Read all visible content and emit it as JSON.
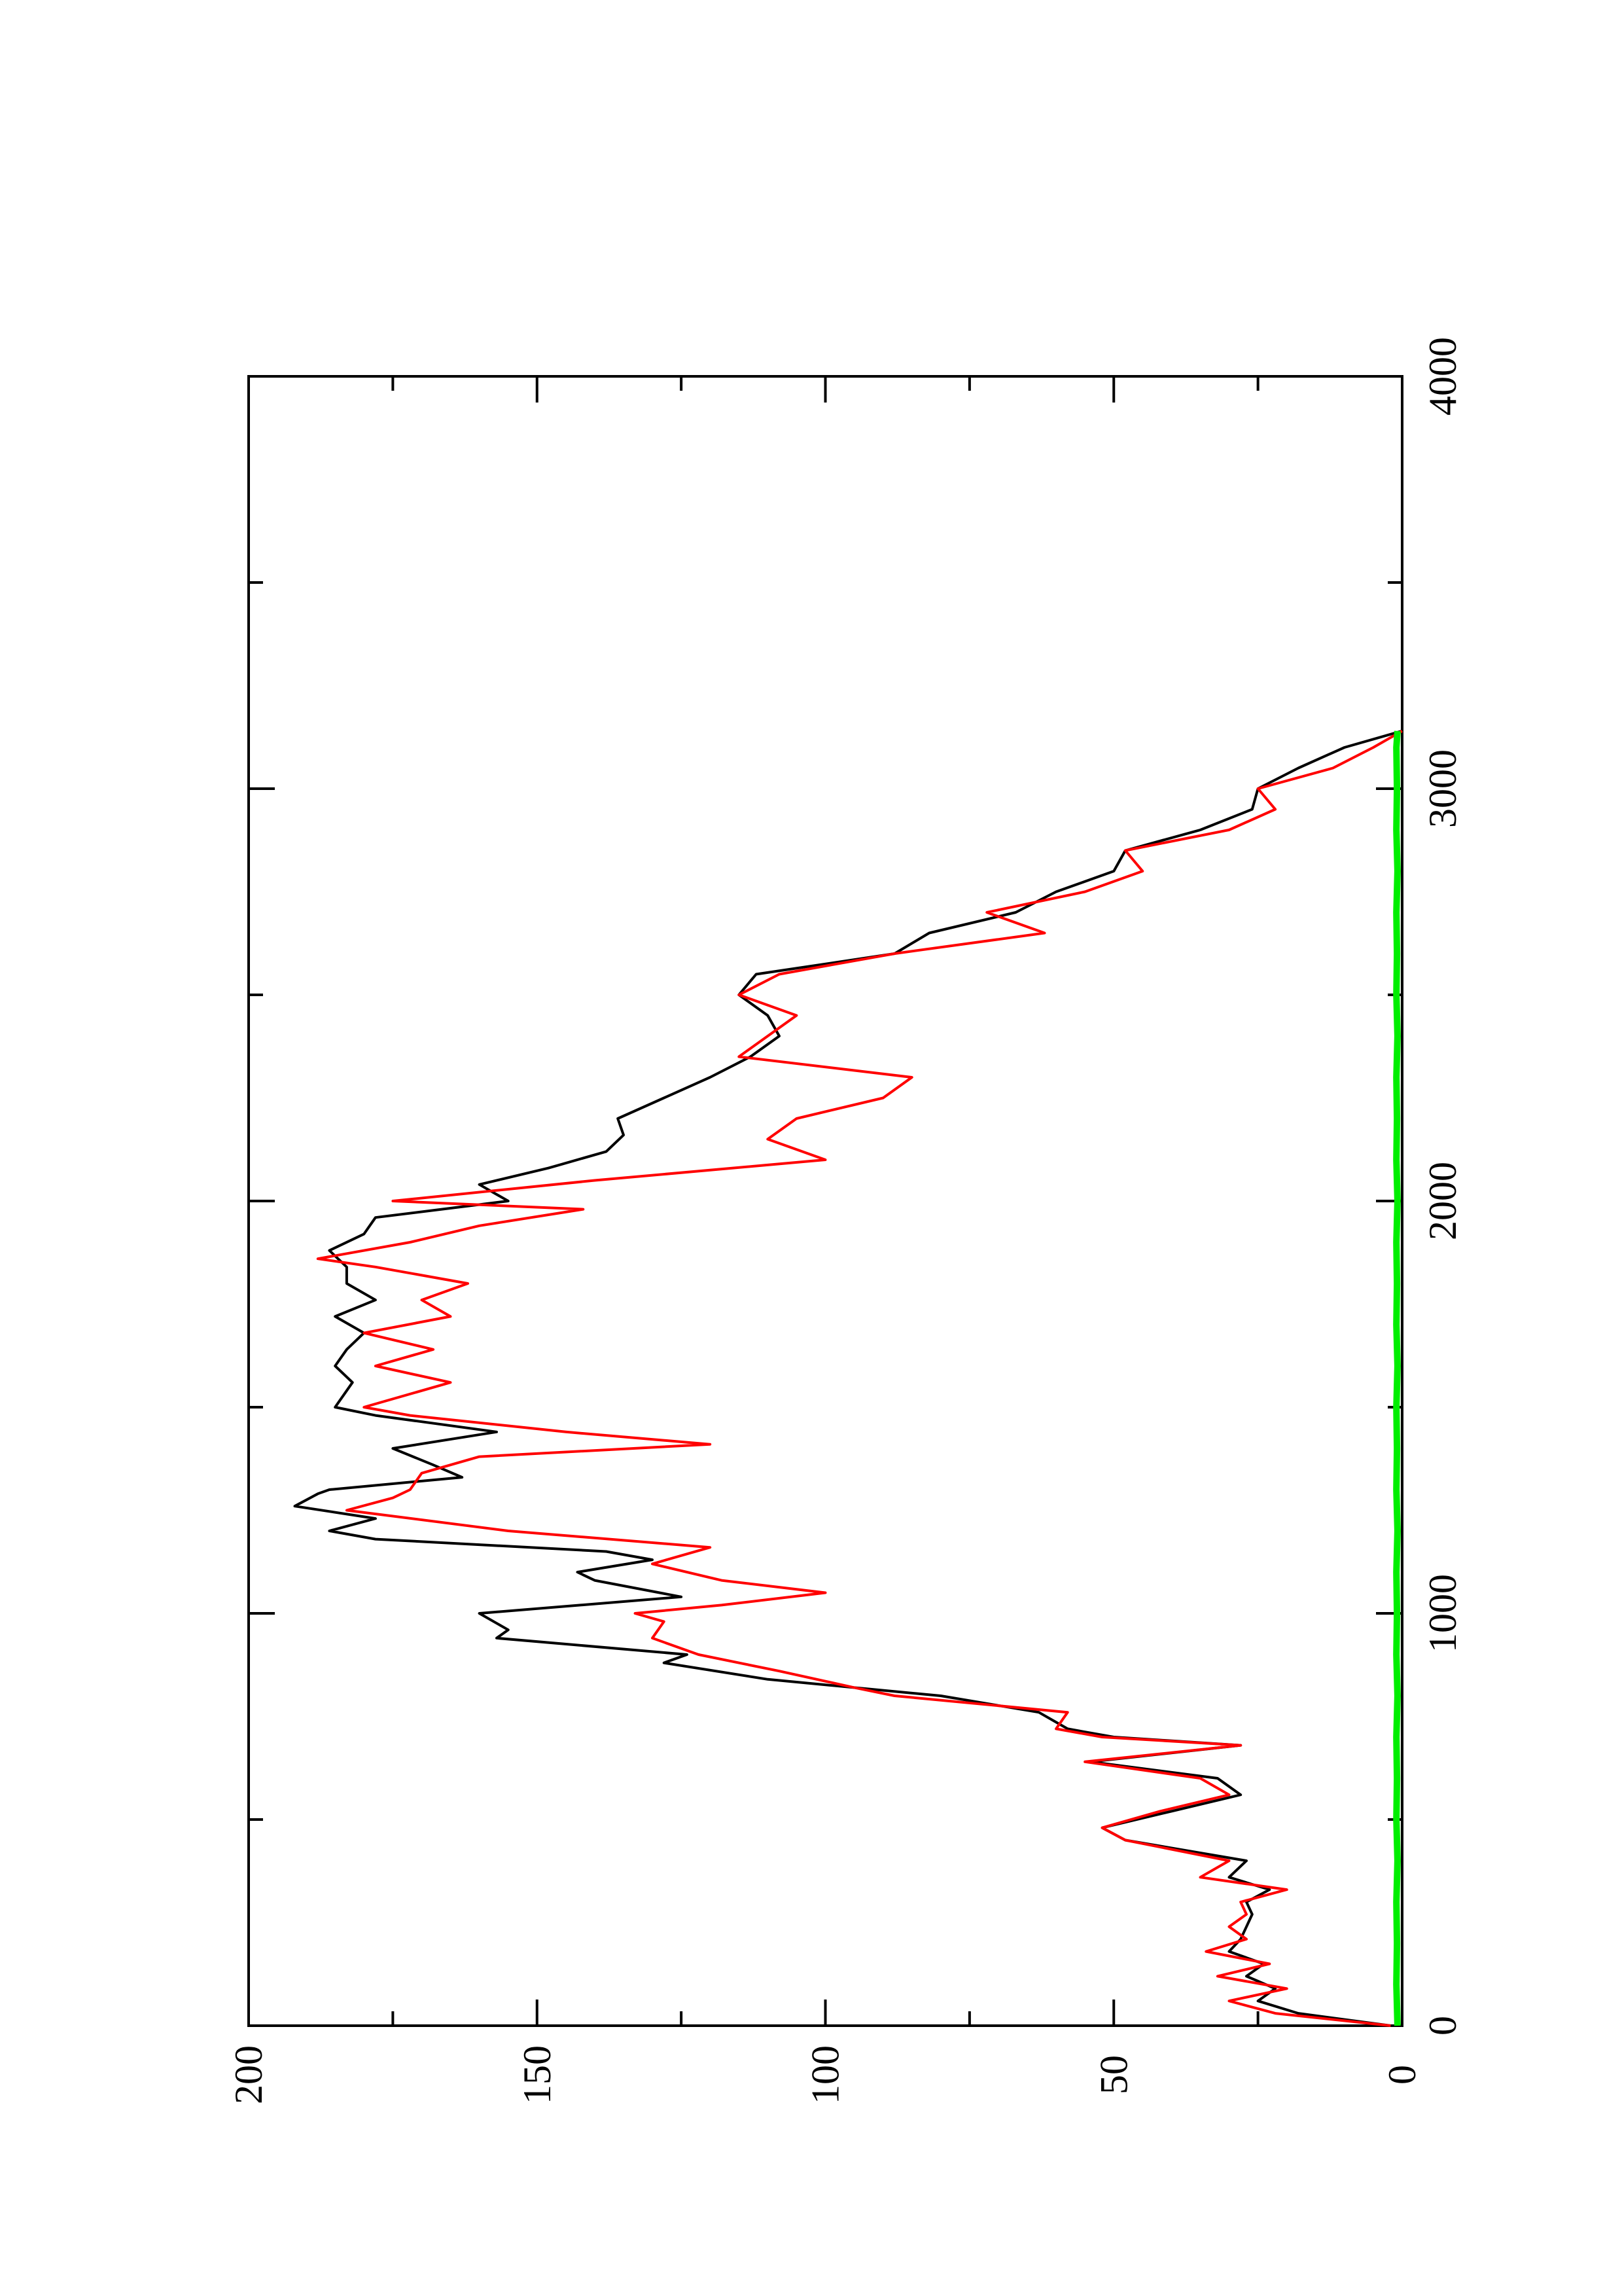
{
  "chart_data": {
    "type": "line",
    "title": "",
    "xlabel": "",
    "ylabel": "",
    "xlim": [
      0,
      4000
    ],
    "ylim": [
      0,
      200
    ],
    "x_ticks": [
      0,
      1000,
      2000,
      3000,
      4000
    ],
    "x_minor_ticks": [
      500,
      1500,
      2500,
      3500
    ],
    "y_ticks": [
      0,
      50,
      100,
      150,
      200
    ],
    "y_minor_ticks": [
      25,
      75,
      125,
      175
    ],
    "x_tick_labels": [
      "0",
      "1000",
      "2000",
      "3000",
      "4000"
    ],
    "y_tick_labels": [
      "0",
      "50",
      "100",
      "150",
      "200"
    ],
    "grid": false,
    "orientation": "rotated 90 degrees counter-clockwise",
    "series": [
      {
        "color": "#000000",
        "x": [
          0,
          30,
          60,
          90,
          120,
          150,
          180,
          210,
          240,
          270,
          300,
          330,
          360,
          400,
          450,
          480,
          520,
          560,
          600,
          640,
          680,
          700,
          720,
          760,
          800,
          840,
          880,
          900,
          940,
          960,
          1000,
          1040,
          1080,
          1100,
          1130,
          1150,
          1180,
          1200,
          1230,
          1260,
          1290,
          1300,
          1330,
          1360,
          1400,
          1440,
          1480,
          1500,
          1560,
          1600,
          1640,
          1680,
          1720,
          1760,
          1800,
          1840,
          1880,
          1920,
          1960,
          2000,
          2040,
          2080,
          2120,
          2160,
          2200,
          2250,
          2300,
          2350,
          2400,
          2450,
          2500,
          2550,
          2600,
          2650,
          2700,
          2750,
          2800,
          2850,
          2900,
          2950,
          3000,
          3050,
          3100,
          3140
        ],
        "y": [
          2,
          18,
          25,
          22,
          27,
          24,
          30,
          28,
          27,
          26,
          27,
          23,
          30,
          27,
          48,
          52,
          40,
          28,
          32,
          54,
          28,
          50,
          58,
          63,
          80,
          110,
          128,
          124,
          157,
          155,
          160,
          125,
          140,
          143,
          130,
          138,
          178,
          186,
          178,
          192,
          188,
          186,
          163,
          168,
          175,
          157,
          178,
          185,
          182,
          185,
          183,
          180,
          185,
          178,
          183,
          183,
          186,
          180,
          178,
          155,
          160,
          148,
          138,
          135,
          136,
          128,
          120,
          113,
          108,
          110,
          115,
          112,
          88,
          82,
          67,
          60,
          50,
          48,
          35,
          26,
          25,
          18,
          10,
          0
        ]
      },
      {
        "color": "#ff0000",
        "x": [
          0,
          30,
          60,
          90,
          120,
          150,
          180,
          210,
          240,
          270,
          300,
          330,
          360,
          400,
          450,
          480,
          520,
          560,
          600,
          640,
          680,
          700,
          720,
          760,
          800,
          820,
          860,
          900,
          940,
          980,
          1000,
          1020,
          1050,
          1080,
          1120,
          1160,
          1200,
          1250,
          1280,
          1300,
          1340,
          1380,
          1410,
          1440,
          1480,
          1500,
          1560,
          1600,
          1640,
          1680,
          1720,
          1760,
          1800,
          1840,
          1860,
          1900,
          1940,
          1980,
          2000,
          2050,
          2100,
          2150,
          2200,
          2250,
          2300,
          2350,
          2400,
          2450,
          2500,
          2550,
          2600,
          2650,
          2700,
          2750,
          2800,
          2850,
          2900,
          2950,
          3000,
          3050,
          3100,
          3140
        ],
        "y": [
          2,
          22,
          30,
          20,
          32,
          23,
          34,
          27,
          30,
          27,
          28,
          20,
          35,
          30,
          48,
          52,
          42,
          30,
          35,
          55,
          28,
          52,
          60,
          58,
          88,
          95,
          108,
          122,
          130,
          128,
          133,
          118,
          100,
          118,
          130,
          120,
          155,
          183,
          175,
          172,
          170,
          160,
          120,
          145,
          172,
          180,
          165,
          178,
          168,
          180,
          165,
          170,
          162,
          178,
          188,
          172,
          160,
          142,
          175,
          140,
          100,
          110,
          105,
          90,
          85,
          115,
          110,
          105,
          115,
          108,
          88,
          62,
          72,
          55,
          45,
          48,
          30,
          22,
          25,
          12,
          5,
          0
        ]
      },
      {
        "color": "#00ee00",
        "x": [
          0,
          100,
          200,
          300,
          400,
          500,
          600,
          700,
          800,
          900,
          1000,
          1100,
          1200,
          1300,
          1400,
          1500,
          1600,
          1700,
          1800,
          1900,
          2000,
          2100,
          2200,
          2300,
          2400,
          2500,
          2600,
          2700,
          2800,
          2900,
          3000,
          3100,
          3140
        ],
        "y": [
          0.8,
          1.0,
          0.9,
          1.0,
          0.8,
          1.0,
          0.9,
          1.0,
          0.8,
          1.0,
          0.9,
          1.0,
          0.8,
          1.0,
          0.9,
          1.0,
          0.8,
          1.0,
          0.9,
          1.0,
          0.8,
          1.0,
          0.9,
          1.0,
          0.8,
          1.0,
          0.9,
          1.0,
          0.8,
          1.0,
          0.9,
          1.0,
          0.8
        ]
      }
    ]
  }
}
